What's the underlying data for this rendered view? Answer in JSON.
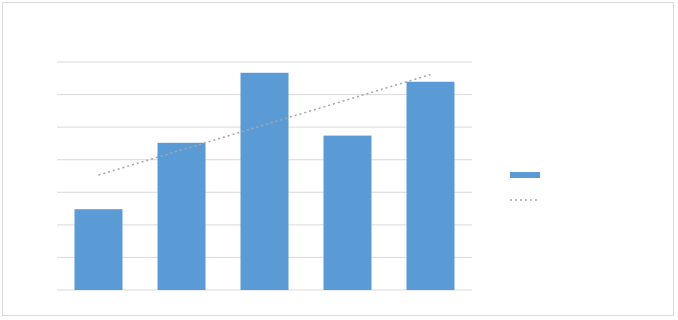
{
  "chart_data": {
    "type": "bar",
    "title": "",
    "categories": [
      "",
      "",
      "",
      "",
      ""
    ],
    "series": [
      {
        "values": [
          3.0,
          6.7,
          10.6,
          7.1,
          10.1
        ],
        "color": "#5b9bd5"
      }
    ],
    "trendline": {
      "start": 4.9,
      "end": 10.5,
      "color": "#a6a6a6"
    },
    "yticks": [
      "",
      "",
      "",
      "",
      "",
      "",
      "",
      ""
    ],
    "ylim": [
      -1.5,
      11.2
    ],
    "grid": "horizontal",
    "legend_position": "right",
    "legend": [
      {
        "label": "",
        "marker": "bar",
        "color": "#5b9bd5"
      },
      {
        "label": "",
        "marker": "dotted-line",
        "color": "#a6a6a6"
      }
    ]
  }
}
